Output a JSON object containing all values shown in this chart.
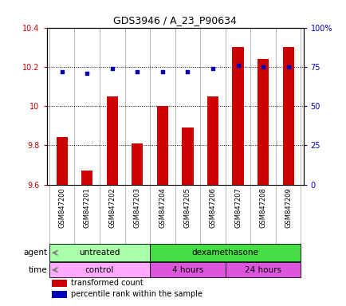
{
  "title": "GDS3946 / A_23_P90634",
  "samples": [
    "GSM847200",
    "GSM847201",
    "GSM847202",
    "GSM847203",
    "GSM847204",
    "GSM847205",
    "GSM847206",
    "GSM847207",
    "GSM847208",
    "GSM847209"
  ],
  "red_values": [
    9.84,
    9.67,
    10.05,
    9.81,
    10.0,
    9.89,
    10.05,
    10.3,
    10.24,
    10.3
  ],
  "blue_values": [
    72,
    71,
    74,
    72,
    72,
    72,
    74,
    76,
    75,
    75
  ],
  "ylim_left": [
    9.6,
    10.4
  ],
  "ylim_right": [
    0,
    100
  ],
  "yticks_left": [
    9.6,
    9.8,
    10.0,
    10.2,
    10.4
  ],
  "ytick_labels_left": [
    "9.6",
    "9.8",
    "10",
    "10.2",
    "10.4"
  ],
  "yticks_right": [
    0,
    25,
    50,
    75,
    100
  ],
  "ytick_labels_right": [
    "0",
    "25",
    "50",
    "75",
    "100%"
  ],
  "bar_color": "#cc0000",
  "dot_color": "#0000bb",
  "agent_untreated_color": "#aaffaa",
  "agent_dexamethasone_color": "#44dd44",
  "time_control_color": "#ffaaff",
  "time_4h_color": "#dd55dd",
  "time_24h_color": "#dd55dd",
  "tick_color_left": "#cc0000",
  "tick_color_right": "#0000bb",
  "legend_red_label": "transformed count",
  "legend_blue_label": "percentile rank within the sample",
  "xtick_bg_color": "#cccccc",
  "agent_label": "agent",
  "time_label": "time"
}
